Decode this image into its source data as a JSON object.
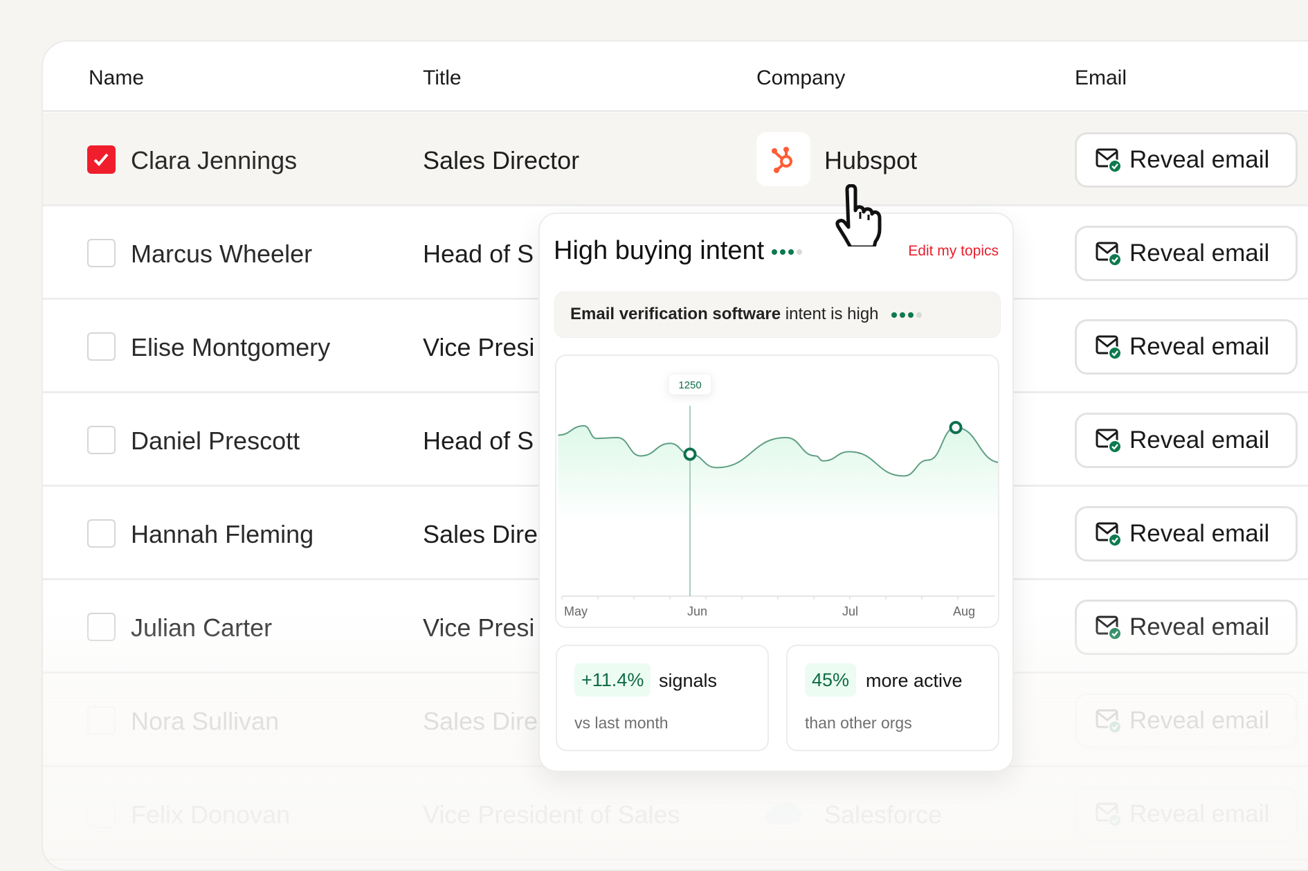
{
  "table": {
    "headers": {
      "name": "Name",
      "title": "Title",
      "company": "Company",
      "email": "Email"
    },
    "rows": [
      {
        "name": "Clara Jennings",
        "title": "Sales Director",
        "company": "Hubspot",
        "checked": true,
        "email_button": "Reveal email"
      },
      {
        "name": "Marcus Wheeler",
        "title": "Head of S",
        "checked": false,
        "email_button": "Reveal email"
      },
      {
        "name": "Elise Montgomery",
        "title": "Vice Presi",
        "checked": false,
        "email_button": "Reveal email"
      },
      {
        "name": "Daniel Prescott",
        "title": "Head of S",
        "checked": false,
        "email_button": "Reveal email"
      },
      {
        "name": "Hannah Fleming",
        "title": "Sales Dire",
        "checked": false,
        "email_button": "Reveal email"
      },
      {
        "name": "Julian Carter",
        "title": "Vice Presi",
        "checked": false,
        "email_button": "Reveal email"
      },
      {
        "name": "Nora Sullivan",
        "title": "Sales Dire",
        "checked": false,
        "email_button": "Reveal email"
      },
      {
        "name": "Felix Donovan",
        "title": "Vice President of Sales",
        "company": "Salesforce",
        "checked": false,
        "email_button": "Reveal email"
      }
    ]
  },
  "popup": {
    "title": "High buying intent",
    "intent_level": 3,
    "intent_max": 4,
    "edit_link": "Edit my topics",
    "topic_bold": "Email verification software",
    "topic_rest": " intent is high",
    "stats": [
      {
        "value": "+11.4%",
        "label": "signals",
        "sub": "vs last month"
      },
      {
        "value": "45%",
        "label": "more active",
        "sub": "than other orgs"
      }
    ]
  },
  "colors": {
    "accent_red": "#f01e2c",
    "green": "#0e7a4e",
    "hubspot": "#ff5c35",
    "salesforce": "#00a1e0"
  },
  "chart_data": {
    "type": "area",
    "x_tick_labels": [
      "May",
      "Jun",
      "Jul",
      "Aug"
    ],
    "tooltip": "1250",
    "highlighted": [
      "Jun",
      "Aug"
    ],
    "points": [
      {
        "x": -0.07,
        "y": 1418
      },
      {
        "x": 0.14,
        "y": 1500
      },
      {
        "x": 0.24,
        "y": 1389
      },
      {
        "x": 0.41,
        "y": 1396
      },
      {
        "x": 0.6,
        "y": 1235
      },
      {
        "x": 0.84,
        "y": 1345
      },
      {
        "x": 1.0,
        "y": 1250
      },
      {
        "x": 1.17,
        "y": 1132
      },
      {
        "x": 1.62,
        "y": 1396
      },
      {
        "x": 1.81,
        "y": 1235
      },
      {
        "x": 1.86,
        "y": 1191
      },
      {
        "x": 2.04,
        "y": 1272
      },
      {
        "x": 2.53,
        "y": 1058
      },
      {
        "x": 2.75,
        "y": 1198
      },
      {
        "x": 3.0,
        "y": 1485
      },
      {
        "x": 3.41,
        "y": 1176
      }
    ],
    "grid": false
  }
}
